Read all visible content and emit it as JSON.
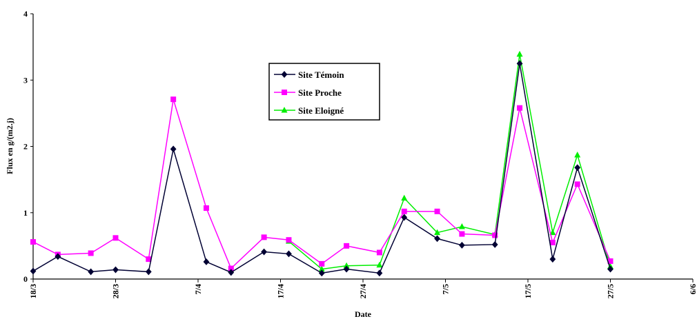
{
  "chart_data": {
    "type": "line",
    "xlabel": "Date",
    "ylabel": "Flux en g/(m2.j)",
    "x_ticks": [
      {
        "label": "18/3",
        "day": 0
      },
      {
        "label": "28/3",
        "day": 10
      },
      {
        "label": "7/4",
        "day": 20
      },
      {
        "label": "17/4",
        "day": 30
      },
      {
        "label": "27/4",
        "day": 40
      },
      {
        "label": "7/5",
        "day": 50
      },
      {
        "label": "17/5",
        "day": 60
      },
      {
        "label": "27/5",
        "day": 70
      },
      {
        "label": "6/6",
        "day": 80
      }
    ],
    "x_range": [
      0,
      80
    ],
    "ylim": [
      0,
      4
    ],
    "y_ticks": [
      0,
      1,
      2,
      3,
      4
    ],
    "grid": false,
    "legend_placement": "top-center",
    "series": [
      {
        "name": "Site Témoin",
        "color": "#000033",
        "marker": "diamond",
        "points": [
          {
            "x": 0,
            "y": 0.12
          },
          {
            "x": 3,
            "y": 0.34
          },
          {
            "x": 7,
            "y": 0.11
          },
          {
            "x": 10,
            "y": 0.14
          },
          {
            "x": 14,
            "y": 0.11
          },
          {
            "x": 17,
            "y": 1.96
          },
          {
            "x": 21,
            "y": 0.26
          },
          {
            "x": 24,
            "y": 0.1
          },
          {
            "x": 28,
            "y": 0.41
          },
          {
            "x": 31,
            "y": 0.38
          },
          {
            "x": 35,
            "y": 0.09
          },
          {
            "x": 38,
            "y": 0.15
          },
          {
            "x": 42,
            "y": 0.09
          },
          {
            "x": 45,
            "y": 0.93
          },
          {
            "x": 49,
            "y": 0.61
          },
          {
            "x": 52,
            "y": 0.51
          },
          {
            "x": 56,
            "y": 0.52
          },
          {
            "x": 59,
            "y": 3.25
          },
          {
            "x": 63,
            "y": 0.3
          },
          {
            "x": 66,
            "y": 1.68
          },
          {
            "x": 70,
            "y": 0.15
          }
        ]
      },
      {
        "name": "Site Proche",
        "color": "#ff00ff",
        "marker": "square",
        "points": [
          {
            "x": 0,
            "y": 0.56
          },
          {
            "x": 3,
            "y": 0.37
          },
          {
            "x": 7,
            "y": 0.39
          },
          {
            "x": 10,
            "y": 0.62
          },
          {
            "x": 14,
            "y": 0.3
          },
          {
            "x": 17,
            "y": 2.71
          },
          {
            "x": 21,
            "y": 1.07
          },
          {
            "x": 24,
            "y": 0.16
          },
          {
            "x": 28,
            "y": 0.63
          },
          {
            "x": 31,
            "y": 0.59
          },
          {
            "x": 35,
            "y": 0.23
          },
          {
            "x": 38,
            "y": 0.5
          },
          {
            "x": 42,
            "y": 0.4
          },
          {
            "x": 45,
            "y": 1.02
          },
          {
            "x": 49,
            "y": 1.02
          },
          {
            "x": 52,
            "y": 0.68
          },
          {
            "x": 56,
            "y": 0.66
          },
          {
            "x": 59,
            "y": 2.58
          },
          {
            "x": 63,
            "y": 0.55
          },
          {
            "x": 66,
            "y": 1.43
          },
          {
            "x": 70,
            "y": 0.27
          }
        ]
      },
      {
        "name": "Site Eloigné",
        "color": "#00ee00",
        "marker": "triangle",
        "points": [
          {
            "x": 31,
            "y": 0.57
          },
          {
            "x": 35,
            "y": 0.15
          },
          {
            "x": 38,
            "y": 0.2
          },
          {
            "x": 42,
            "y": 0.21
          },
          {
            "x": 45,
            "y": 1.22
          },
          {
            "x": 49,
            "y": 0.7
          },
          {
            "x": 52,
            "y": 0.79
          },
          {
            "x": 56,
            "y": 0.67
          },
          {
            "x": 59,
            "y": 3.39
          },
          {
            "x": 63,
            "y": 0.7
          },
          {
            "x": 66,
            "y": 1.87
          },
          {
            "x": 70,
            "y": 0.19
          }
        ]
      }
    ]
  }
}
